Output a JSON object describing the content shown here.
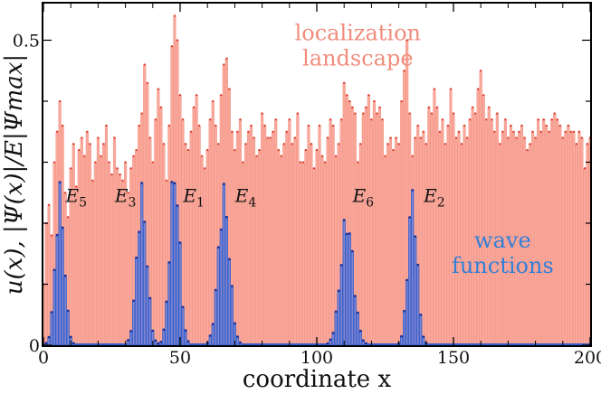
{
  "chart_data": {
    "type": "bar",
    "xlabel": "coordinate x",
    "ylabel": "u(x),  |Ψ(x)|/E|Ψmax|",
    "xlim": [
      0,
      200
    ],
    "ylim": [
      0,
      0.56
    ],
    "xticks": [
      0,
      50,
      100,
      150,
      200
    ],
    "ytick_labels": [
      {
        "value": 0,
        "label": "0"
      },
      {
        "value": 0.5,
        "label": "0.5"
      }
    ],
    "annotations": [
      {
        "id": "landscape",
        "lines": [
          "localization",
          "landscape"
        ],
        "x": 115,
        "y": 0.5
      },
      {
        "id": "wave",
        "lines": [
          "wave",
          "functions"
        ],
        "x": 168,
        "y": 0.16
      }
    ],
    "eigen_labels": [
      {
        "base": "E",
        "sub": "5",
        "x": 12,
        "y": 0.235
      },
      {
        "base": "E",
        "sub": "3",
        "x": 30,
        "y": 0.235
      },
      {
        "base": "E",
        "sub": "1",
        "x": 55,
        "y": 0.235
      },
      {
        "base": "E",
        "sub": "4",
        "x": 74,
        "y": 0.235
      },
      {
        "base": "E",
        "sub": "6",
        "x": 117,
        "y": 0.235
      },
      {
        "base": "E",
        "sub": "2",
        "x": 143,
        "y": 0.235
      }
    ],
    "series": [
      {
        "color": "#f9a89b",
        "values": [
          0.1,
          0.2,
          0.23,
          0.18,
          0.3,
          0.35,
          0.4,
          0.36,
          0.25,
          0.21,
          0.29,
          0.33,
          0.26,
          0.32,
          0.34,
          0.31,
          0.35,
          0.33,
          0.27,
          0.3,
          0.34,
          0.31,
          0.33,
          0.36,
          0.3,
          0.28,
          0.34,
          0.29,
          0.28,
          0.27,
          0.3,
          0.25,
          0.29,
          0.31,
          0.32,
          0.36,
          0.38,
          0.46,
          0.43,
          0.34,
          0.3,
          0.37,
          0.42,
          0.39,
          0.33,
          0.27,
          0.36,
          0.49,
          0.54,
          0.5,
          0.41,
          0.37,
          0.33,
          0.32,
          0.35,
          0.39,
          0.41,
          0.36,
          0.31,
          0.29,
          0.32,
          0.37,
          0.4,
          0.36,
          0.33,
          0.41,
          0.46,
          0.47,
          0.42,
          0.35,
          0.32,
          0.35,
          0.37,
          0.3,
          0.33,
          0.35,
          0.36,
          0.34,
          0.31,
          0.32,
          0.38,
          0.36,
          0.34,
          0.34,
          0.35,
          0.37,
          0.32,
          0.31,
          0.33,
          0.35,
          0.37,
          0.33,
          0.34,
          0.38,
          0.3,
          0.3,
          0.32,
          0.36,
          0.33,
          0.29,
          0.32,
          0.36,
          0.31,
          0.3,
          0.34,
          0.37,
          0.36,
          0.31,
          0.33,
          0.37,
          0.43,
          0.41,
          0.4,
          0.39,
          0.38,
          0.3,
          0.33,
          0.38,
          0.39,
          0.41,
          0.37,
          0.4,
          0.38,
          0.39,
          0.37,
          0.31,
          0.33,
          0.34,
          0.32,
          0.34,
          0.33,
          0.4,
          0.45,
          0.5,
          0.38,
          0.31,
          0.34,
          0.36,
          0.34,
          0.35,
          0.33,
          0.39,
          0.38,
          0.42,
          0.39,
          0.35,
          0.37,
          0.33,
          0.36,
          0.42,
          0.38,
          0.34,
          0.35,
          0.33,
          0.36,
          0.34,
          0.37,
          0.39,
          0.38,
          0.42,
          0.45,
          0.41,
          0.37,
          0.39,
          0.37,
          0.35,
          0.38,
          0.33,
          0.35,
          0.37,
          0.34,
          0.36,
          0.35,
          0.34,
          0.35,
          0.36,
          0.34,
          0.32,
          0.33,
          0.35,
          0.34,
          0.37,
          0.35,
          0.37,
          0.36,
          0.35,
          0.37,
          0.38,
          0.37,
          0.36,
          0.34,
          0.35,
          0.36,
          0.35,
          0.35,
          0.33,
          0.35,
          0.34,
          0.29,
          0.33,
          0.34
        ]
      },
      {
        "color": "#2f5fcc",
        "peaks": [
          {
            "center": 6,
            "height": 0.24,
            "width": 1.7
          },
          {
            "center": 36,
            "height": 0.24,
            "width": 1.9
          },
          {
            "center": 48,
            "height": 0.28,
            "width": 1.8
          },
          {
            "center": 66,
            "height": 0.24,
            "width": 2.1
          },
          {
            "center": 111,
            "height": 0.2,
            "width": 2.4
          },
          {
            "center": 135,
            "height": 0.24,
            "width": 1.7
          }
        ]
      }
    ]
  }
}
